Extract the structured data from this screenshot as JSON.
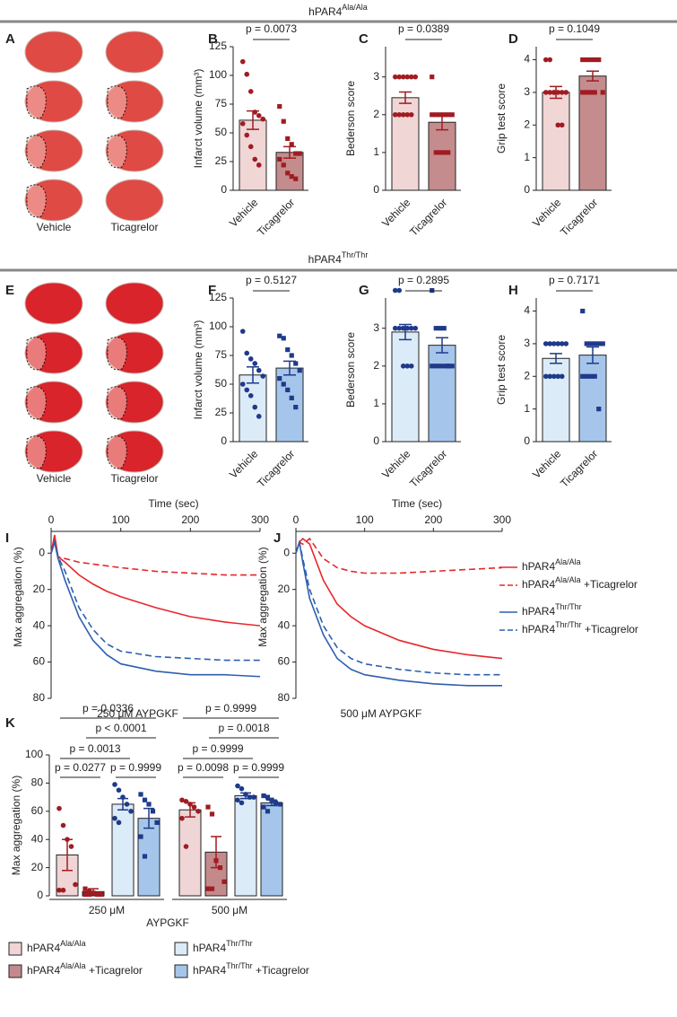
{
  "figure": {
    "letters": [
      "A",
      "B",
      "C",
      "D",
      "E",
      "F",
      "G",
      "H",
      "I",
      "J",
      "K"
    ],
    "sections": [
      {
        "text": "hPAR4",
        "sup": "Ala/Ala"
      },
      {
        "text": "hPAR4",
        "sup": "Thr/Thr"
      }
    ],
    "image_panels": [
      {
        "labels": [
          "Vehicle",
          "Ticagrelor"
        ]
      },
      {
        "labels": [
          "Vehicle",
          "Ticagrelor"
        ]
      }
    ]
  },
  "chart_data": [
    {
      "type": "bar",
      "ylabel": "Infarct volume (mm³)",
      "categories": [
        "Vehicle",
        "Ticagrelor"
      ],
      "values": [
        61,
        33
      ],
      "errors": [
        8,
        5
      ],
      "points": [
        [
          112,
          101,
          86,
          68,
          65,
          62,
          58,
          48,
          38,
          27,
          22
        ],
        [
          73,
          60,
          45,
          40,
          32,
          32,
          27,
          22,
          15,
          12,
          10
        ]
      ],
      "colors": [
        "#f1d6d6",
        "#c58c8d"
      ],
      "point_color": "#a01c22",
      "p_label": "p = 0.0073",
      "ylim": [
        0,
        125
      ],
      "yticks": [
        0,
        25,
        50,
        75,
        100,
        125
      ]
    },
    {
      "type": "bar",
      "ylabel": "Bederson score",
      "categories": [
        "Vehicle",
        "Ticagrelor"
      ],
      "values": [
        2.45,
        1.8
      ],
      "errors": [
        0.15,
        0.2
      ],
      "points": [
        [
          3,
          3,
          3,
          3,
          3,
          3,
          2,
          2,
          2,
          2,
          2
        ],
        [
          3,
          2,
          2,
          2,
          2,
          2,
          2,
          1,
          1,
          1,
          1
        ]
      ],
      "colors": [
        "#f1d6d6",
        "#c58c8d"
      ],
      "point_color": "#a01c22",
      "p_label": "p = 0.0389",
      "ylim": [
        0,
        3.8
      ],
      "yticks": [
        0,
        1,
        2,
        3
      ]
    },
    {
      "type": "bar",
      "ylabel": "Grip test score",
      "categories": [
        "Vehicle",
        "Ticagrelor"
      ],
      "values": [
        3.0,
        3.5
      ],
      "errors": [
        0.18,
        0.15
      ],
      "points": [
        [
          4,
          4,
          3,
          3,
          3,
          3,
          3,
          3,
          3,
          2,
          2
        ],
        [
          4,
          4,
          4,
          4,
          4,
          3,
          3,
          3,
          3,
          3
        ]
      ],
      "colors": [
        "#f1d6d6",
        "#c58c8d"
      ],
      "point_color": "#a01c22",
      "p_label": "p = 0.1049",
      "ylim": [
        0,
        4.4
      ],
      "yticks": [
        0,
        1,
        2,
        3,
        4
      ]
    },
    {
      "type": "bar",
      "ylabel": "Infarct volume (mm³)",
      "categories": [
        "Vehicle",
        "Ticagrelor"
      ],
      "values": [
        58,
        64
      ],
      "errors": [
        7,
        6
      ],
      "points": [
        [
          96,
          77,
          72,
          68,
          62,
          57,
          50,
          45,
          40,
          30,
          22
        ],
        [
          92,
          90,
          80,
          75,
          68,
          62,
          55,
          50,
          45,
          38,
          30
        ]
      ],
      "colors": [
        "#dcebf8",
        "#a5c6ea"
      ],
      "point_color": "#1f3a8a",
      "p_label": "p = 0.5127",
      "ylim": [
        0,
        125
      ],
      "yticks": [
        0,
        25,
        50,
        75,
        100,
        125
      ]
    },
    {
      "type": "bar",
      "ylabel": "Bederson score",
      "categories": [
        "Vehicle",
        "Ticagrelor"
      ],
      "values": [
        2.9,
        2.55
      ],
      "errors": [
        0.2,
        0.2
      ],
      "points": [
        [
          4,
          4,
          3,
          3,
          3,
          3,
          3,
          3,
          2,
          2,
          2
        ],
        [
          4,
          3,
          3,
          3,
          2,
          2,
          2,
          2,
          2,
          2,
          2
        ]
      ],
      "colors": [
        "#dcebf8",
        "#a5c6ea"
      ],
      "point_color": "#1f3a8a",
      "p_label": "p = 0.2895",
      "ylim": [
        0,
        3.8
      ],
      "yticks": [
        0,
        1,
        2,
        3
      ]
    },
    {
      "type": "bar",
      "ylabel": "Grip test score",
      "categories": [
        "Vehicle",
        "Ticagrelor"
      ],
      "values": [
        2.55,
        2.65
      ],
      "errors": [
        0.15,
        0.25
      ],
      "points": [
        [
          3,
          3,
          3,
          3,
          3,
          3,
          2,
          2,
          2,
          2,
          2
        ],
        [
          4,
          3,
          3,
          3,
          3,
          3,
          2,
          2,
          2,
          2,
          1
        ]
      ],
      "colors": [
        "#dcebf8",
        "#a5c6ea"
      ],
      "point_color": "#1f3a8a",
      "p_label": "p = 0.7171",
      "ylim": [
        0,
        4.4
      ],
      "yticks": [
        0,
        1,
        2,
        3,
        4
      ]
    },
    {
      "type": "line",
      "xlabel": "Time (sec)",
      "ylabel": "Max aggregation (%)",
      "subtitle": "250 μM AYPGKF",
      "x": [
        0,
        5,
        10,
        20,
        40,
        60,
        80,
        100,
        150,
        200,
        250,
        300
      ],
      "xlim": [
        0,
        300
      ],
      "xticks": [
        0,
        100,
        200,
        300
      ],
      "ylim": [
        -12,
        80
      ],
      "yticks": [
        0,
        20,
        40,
        60,
        80
      ],
      "y_inverted": true,
      "series": [
        {
          "color": "#e8262b",
          "dash": false,
          "values": [
            0,
            -10,
            2,
            5,
            12,
            17,
            21,
            24,
            30,
            35,
            38,
            40
          ]
        },
        {
          "color": "#e8262b",
          "dash": true,
          "values": [
            0,
            -8,
            2,
            3,
            5,
            6,
            7,
            8,
            10,
            11,
            12,
            12
          ]
        },
        {
          "color": "#2d5fb0",
          "dash": false,
          "values": [
            0,
            -6,
            3,
            15,
            35,
            48,
            56,
            61,
            65,
            67,
            67,
            68
          ]
        },
        {
          "color": "#2d5fb0",
          "dash": true,
          "values": [
            0,
            -6,
            2,
            10,
            30,
            42,
            50,
            54,
            57,
            58,
            59,
            59
          ]
        }
      ]
    },
    {
      "type": "line",
      "xlabel": "Time (sec)",
      "ylabel": "Max aggregation (%)",
      "subtitle": "500 μM AYPGKF",
      "x": [
        0,
        5,
        10,
        20,
        40,
        60,
        80,
        100,
        150,
        200,
        250,
        300
      ],
      "xlim": [
        0,
        300
      ],
      "xticks": [
        0,
        100,
        200,
        300
      ],
      "ylim": [
        -12,
        80
      ],
      "yticks": [
        0,
        20,
        40,
        60,
        80
      ],
      "y_inverted": true,
      "series": [
        {
          "name": "hPAR4",
          "name_sup": "Ala/Ala",
          "color": "#e8262b",
          "dash": false,
          "values": [
            0,
            -6,
            -8,
            -5,
            15,
            28,
            35,
            40,
            48,
            53,
            56,
            58
          ]
        },
        {
          "name": "hPAR4",
          "name_sup": "Ala/Ala",
          "name_suffix": " +Ticagrelor",
          "color": "#e8262b",
          "dash": true,
          "values": [
            0,
            -6,
            -5,
            -8,
            3,
            8,
            10,
            11,
            11,
            10,
            9,
            8
          ]
        },
        {
          "name": "hPAR4",
          "name_sup": "Thr/Thr",
          "color": "#2d5fb0",
          "dash": false,
          "values": [
            0,
            -6,
            5,
            25,
            45,
            58,
            64,
            67,
            70,
            72,
            73,
            73
          ]
        },
        {
          "name": "hPAR4",
          "name_sup": "Thr/Thr",
          "name_suffix": " +Ticagrelor",
          "color": "#2d5fb0",
          "dash": true,
          "values": [
            0,
            -6,
            3,
            20,
            40,
            52,
            58,
            61,
            64,
            66,
            67,
            67
          ]
        }
      ]
    },
    {
      "type": "grouped_bar",
      "ylabel": "Max aggregation (%)",
      "xlabel": "AYPGKF",
      "categories": [
        "250 μM",
        "500 μM"
      ],
      "ylim": [
        0,
        100
      ],
      "yticks": [
        0,
        20,
        40,
        60,
        80,
        100
      ],
      "p_labels": [
        [
          "p = 0.0277",
          "p = 0.9999",
          "p = 0.0013",
          "p < 0.0001",
          "p = 0.0336"
        ],
        [
          "p = 0.0098",
          "p = 0.9999",
          "p = 0.9999",
          "p = 0.0018",
          "p = 0.9999"
        ]
      ],
      "series": [
        {
          "name": "hPAR4",
          "name_sup": "Ala/Ala",
          "color": "#efd5d5",
          "point_color": "#a01c22",
          "values": [
            29,
            61
          ],
          "errors": [
            11,
            5
          ],
          "points": [
            [
              62,
              50,
              40,
              35,
              8,
              4,
              4
            ],
            [
              68,
              67,
              65,
              63,
              60,
              55,
              35
            ]
          ]
        },
        {
          "name": "hPAR4",
          "name_sup": "Ala/Ala",
          "name_suffix": " +Ticagrelor",
          "color": "#c48a8b",
          "point_color": "#a01c22",
          "values": [
            3,
            31
          ],
          "errors": [
            2,
            11
          ],
          "points": [
            [
              5,
              3,
              2,
              1,
              1,
              1,
              1
            ],
            [
              63,
              58,
              25,
              20,
              10,
              5,
              5
            ]
          ]
        },
        {
          "name": "hPAR4",
          "name_sup": "Thr/Thr",
          "color": "#dcebf8",
          "point_color": "#1f3a8a",
          "values": [
            65,
            71
          ],
          "errors": [
            4,
            2
          ],
          "points": [
            [
              79,
              75,
              70,
              65,
              60,
              55,
              52
            ],
            [
              78,
              76,
              72,
              70,
              70,
              68,
              66
            ]
          ]
        },
        {
          "name": "hPAR4",
          "name_sup": "Thr/Thr",
          "name_suffix": " +Ticagrelor",
          "color": "#a5c6ea",
          "point_color": "#1f3a8a",
          "values": [
            55,
            66
          ],
          "errors": [
            7,
            2
          ],
          "points": [
            [
              72,
              68,
              65,
              60,
              52,
              42,
              28
            ],
            [
              71,
              70,
              68,
              66,
              65,
              63,
              60
            ]
          ]
        }
      ]
    }
  ]
}
